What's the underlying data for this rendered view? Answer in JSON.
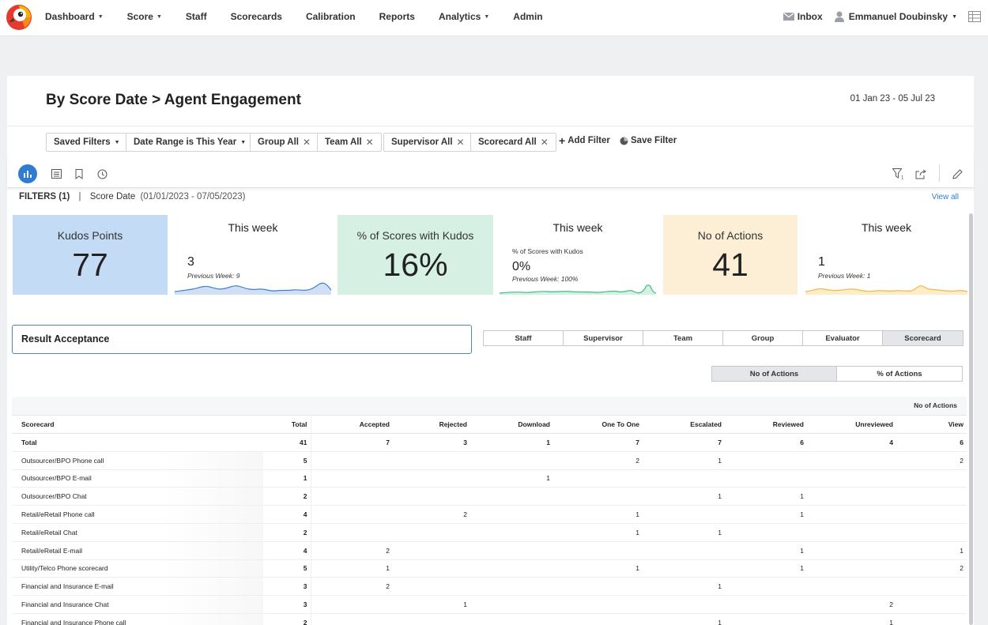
{
  "nav": {
    "items": [
      {
        "label": "Dashboard",
        "dropdown": true
      },
      {
        "label": "Score",
        "dropdown": true
      },
      {
        "label": "Staff",
        "dropdown": false
      },
      {
        "label": "Scorecards",
        "dropdown": false
      },
      {
        "label": "Calibration",
        "dropdown": false
      },
      {
        "label": "Reports",
        "dropdown": false
      },
      {
        "label": "Analytics",
        "dropdown": true
      },
      {
        "label": "Admin",
        "dropdown": false
      }
    ],
    "inbox_label": "Inbox",
    "user_name": "Emmanuel Doubinsky"
  },
  "page": {
    "title": "By Score Date > Agent Engagement",
    "date_range": "01 Jan 23 - 05 Jul 23"
  },
  "filters": {
    "saved_filters": "Saved Filters",
    "date_range": "Date Range is This Year",
    "group": "Group All",
    "team": "Team All",
    "supervisor": "Supervisor All",
    "scorecard": "Scorecard All",
    "add_filter": "Add Filter",
    "save_filter": "Save Filter"
  },
  "filter_summary": {
    "label": "FILTERS (1)",
    "separator": "|",
    "field": "Score Date",
    "value": "(01/01/2023 - 07/05/2023)",
    "view_all": "View all"
  },
  "kpis": [
    {
      "label": "Kudos Points",
      "value": "77",
      "bg": "#c4dbf6"
    },
    {
      "label": "% of Scores with Kudos",
      "value": "16%",
      "bg": "#d6f1e3"
    },
    {
      "label": "No of Actions",
      "value": "41",
      "bg": "#fdefd5"
    }
  ],
  "weekly": [
    {
      "title": "This week",
      "sub": "",
      "value": "3",
      "previous": "Previous Week: 9",
      "color": "#3f7fd0",
      "fill": "#cfe0f5"
    },
    {
      "title": "This week",
      "sub": "% of Scores with Kudos",
      "value": "0%",
      "previous": "Previous Week: 100%",
      "color": "#3fbf86",
      "fill": "#d3f0e2"
    },
    {
      "title": "This week",
      "sub": "",
      "value": "1",
      "previous": "Previous Week: 1",
      "color": "#f0b84a",
      "fill": "#fdecc8"
    }
  ],
  "result_acceptance": {
    "title": "Result Acceptance",
    "groupings": [
      "Staff",
      "Supervisor",
      "Team",
      "Group",
      "Evaluator",
      "Scorecard"
    ],
    "selected_grouping": "Scorecard",
    "measures": [
      "No of Actions",
      "% of Actions"
    ],
    "selected_measure": "No of Actions",
    "unit_label": "No of Actions"
  },
  "table": {
    "columns": [
      "Scorecard",
      "Total",
      "Accepted",
      "Rejected",
      "Download",
      "One To One",
      "Escalated",
      "Reviewed",
      "Unreviewed",
      "View"
    ],
    "total_row": [
      "Total",
      "41",
      "7",
      "3",
      "1",
      "7",
      "7",
      "6",
      "4",
      "6"
    ],
    "rows": [
      [
        "Outsourcer/BPO Phone call",
        "5",
        "",
        "",
        "",
        "2",
        "1",
        "",
        "",
        "2"
      ],
      [
        "Outsourcer/BPO E-mail",
        "1",
        "",
        "",
        "1",
        "",
        "",
        "",
        "",
        ""
      ],
      [
        "Outsourcer/BPO Chat",
        "2",
        "",
        "",
        "",
        "",
        "1",
        "1",
        "",
        ""
      ],
      [
        "Retail/eRetail Phone call",
        "4",
        "",
        "2",
        "",
        "1",
        "",
        "1",
        "",
        ""
      ],
      [
        "Retail/eRetail Chat",
        "2",
        "",
        "",
        "",
        "1",
        "1",
        "",
        "",
        ""
      ],
      [
        "Retail/eRetail E-mail",
        "4",
        "2",
        "",
        "",
        "",
        "",
        "1",
        "",
        "1"
      ],
      [
        "Utility/Telco Phone scorecard",
        "5",
        "1",
        "",
        "",
        "1",
        "",
        "1",
        "",
        "2"
      ],
      [
        "Financial and Insurance E-mail",
        "3",
        "2",
        "",
        "",
        "",
        "1",
        "",
        "",
        ""
      ],
      [
        "Financial and Insurance Chat",
        "3",
        "",
        "1",
        "",
        "",
        "",
        "",
        "2",
        ""
      ],
      [
        "Financial and Insurance Phone call",
        "2",
        "",
        "",
        "",
        "",
        "1",
        "",
        "1",
        ""
      ]
    ]
  }
}
